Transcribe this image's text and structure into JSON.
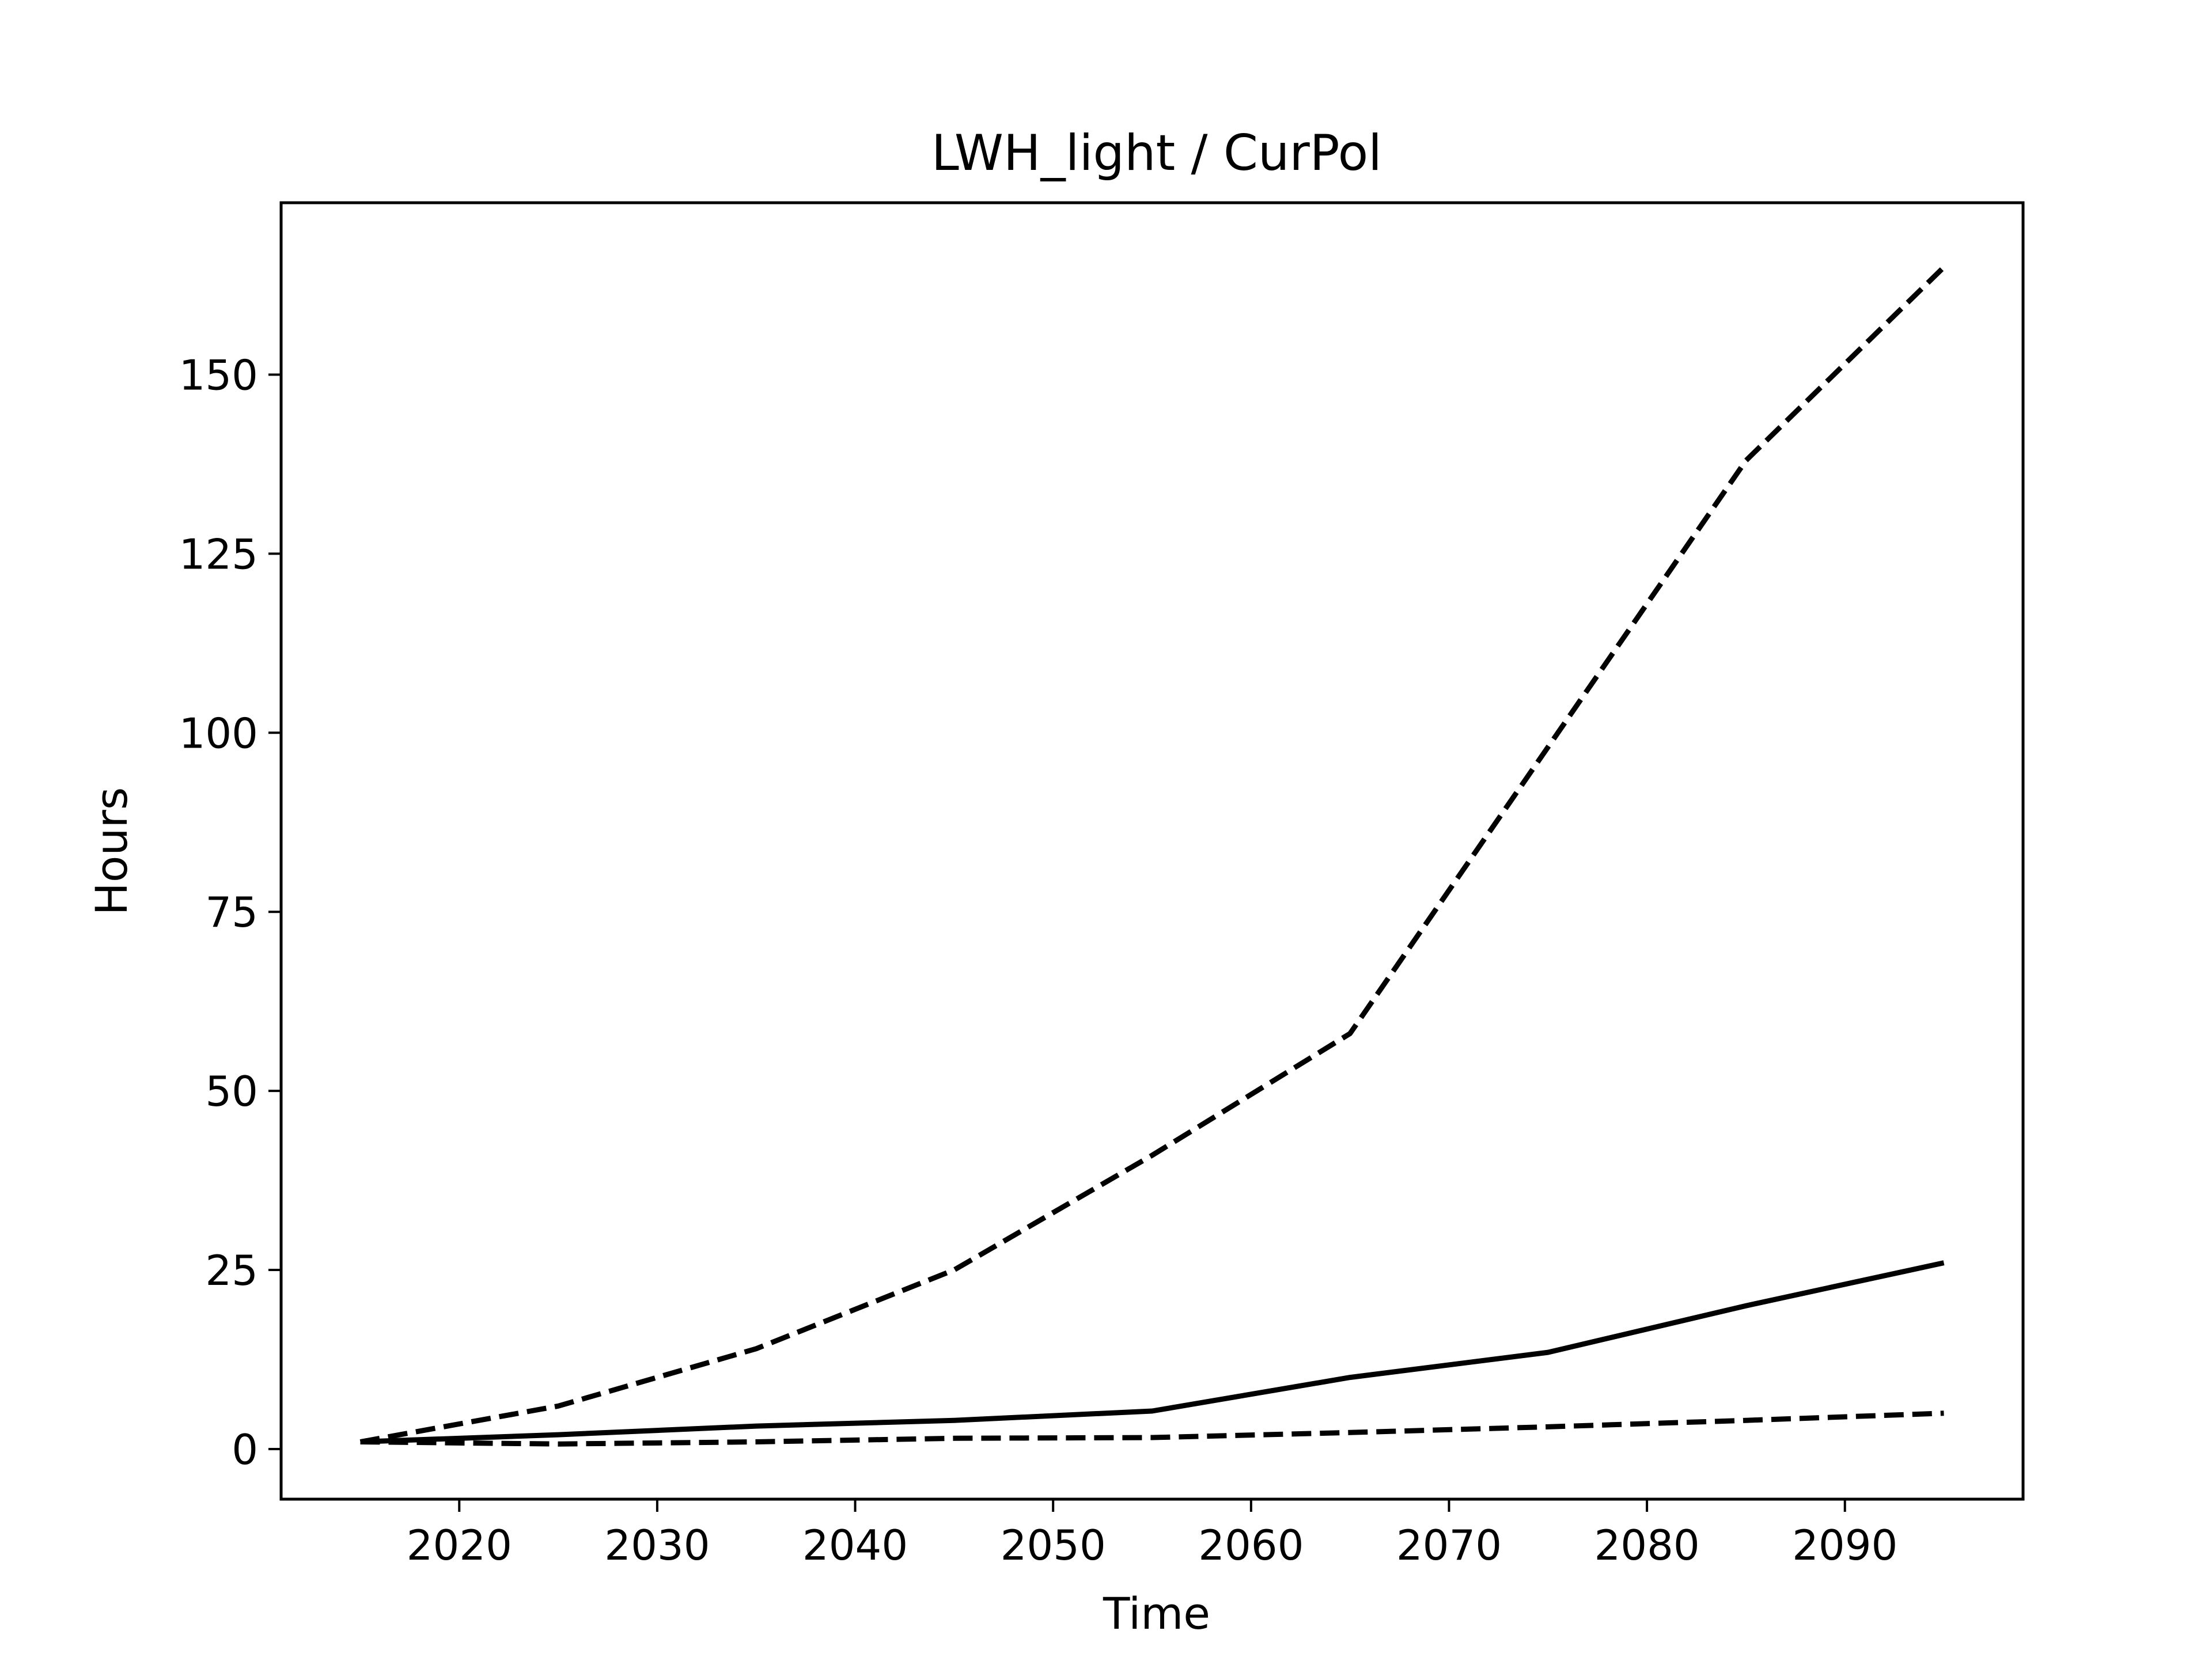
{
  "chart_data": {
    "type": "line",
    "title": "LWH_light / CurPol",
    "xlabel": "Time",
    "ylabel": "Hours",
    "xlim": [
      2011,
      2099
    ],
    "ylim": [
      -7,
      174
    ],
    "xticks": [
      2020,
      2030,
      2040,
      2050,
      2060,
      2070,
      2080,
      2090
    ],
    "yticks": [
      0,
      25,
      50,
      75,
      100,
      125,
      150
    ],
    "grid": false,
    "legend": "none",
    "x": [
      2015,
      2025,
      2035,
      2045,
      2055,
      2065,
      2075,
      2085,
      2095
    ],
    "series": [
      {
        "style": "dashed",
        "color": "#000000",
        "values": [
          1,
          6,
          14,
          25,
          41,
          58,
          98,
          138,
          165
        ]
      },
      {
        "style": "solid",
        "color": "#000000",
        "values": [
          1,
          2,
          3.2,
          4,
          5.3,
          10,
          13.5,
          20,
          26
        ]
      },
      {
        "style": "dashed",
        "color": "#000000",
        "values": [
          1,
          0.7,
          1,
          1.5,
          1.6,
          2.3,
          3.1,
          4,
          5
        ]
      }
    ]
  }
}
